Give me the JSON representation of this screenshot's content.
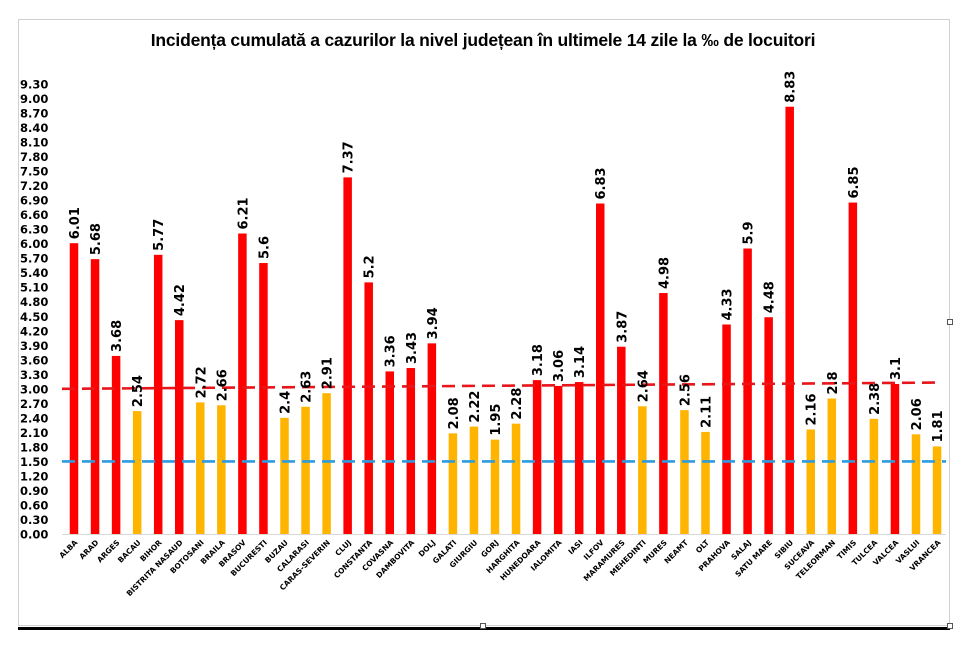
{
  "chart_data": {
    "type": "bar",
    "title": "Incidența cumulată a cazurilor la nivel județean în ultimele 14 zile la ‰ de locuitori",
    "xlabel": "",
    "ylabel": "",
    "ylim": [
      0,
      9.3
    ],
    "yticks": [
      "0.00",
      "0.30",
      "0.60",
      "0.90",
      "1.20",
      "1.50",
      "1.80",
      "2.10",
      "2.40",
      "2.70",
      "3.00",
      "3.30",
      "3.60",
      "3.90",
      "4.20",
      "4.50",
      "4.80",
      "5.10",
      "5.40",
      "5.70",
      "6.00",
      "6.30",
      "6.60",
      "6.90",
      "7.20",
      "7.50",
      "7.80",
      "8.10",
      "8.40",
      "8.70",
      "9.00",
      "9.30"
    ],
    "grid": false,
    "categories": [
      "ALBA",
      "ARAD",
      "ARGES",
      "BACAU",
      "BIHOR",
      "BISTRITA NASAUD",
      "BOTOSANI",
      "BRAILA",
      "BRASOV",
      "BUCURESTI",
      "BUZAU",
      "CALARASI",
      "CARAS-SEVERIN",
      "CLUJ",
      "CONSTANTA",
      "COVASNA",
      "DAMBOVITA",
      "DOLJ",
      "GALATI",
      "GIURGIU",
      "GORJ",
      "HARGHITA",
      "HUNEDOARA",
      "IALOMITA",
      "IASI",
      "ILFOV",
      "MARAMURES",
      "MEHEDINTI",
      "MURES",
      "NEAMT",
      "OLT",
      "PRAHOVA",
      "SALAJ",
      "SATU MARE",
      "SIBIU",
      "SUCEAVA",
      "TELEORMAN",
      "TIMIS",
      "TULCEA",
      "VALCEA",
      "VASLUI",
      "VRANCEA"
    ],
    "values": [
      6.01,
      5.68,
      3.68,
      2.54,
      5.77,
      4.42,
      2.72,
      2.66,
      6.21,
      5.6,
      2.4,
      2.63,
      2.91,
      7.37,
      5.2,
      3.36,
      3.43,
      3.94,
      2.08,
      2.22,
      1.95,
      2.28,
      3.18,
      3.06,
      3.14,
      6.83,
      3.87,
      2.64,
      4.98,
      2.56,
      2.11,
      4.33,
      5.9,
      4.48,
      8.83,
      2.16,
      2.8,
      6.85,
      2.38,
      3.1,
      2.06,
      1.81
    ],
    "data_labels": [
      "6.01",
      "5.68",
      "3.68",
      "2.54",
      "5.77",
      "4.42",
      "2.72",
      "2.66",
      "6.21",
      "5.6",
      "2.4",
      "2.63",
      "2.91",
      "7.37",
      "5.2",
      "3.36",
      "3.43",
      "3.94",
      "2.08",
      "2.22",
      "1.95",
      "2.28",
      "3.18",
      "3.06",
      "3.14",
      "6.83",
      "3.87",
      "2.64",
      "4.98",
      "2.56",
      "2.11",
      "4.33",
      "5.9",
      "4.48",
      "8.83",
      "2.16",
      "2.8",
      "6.85",
      "2.38",
      "3.1",
      "2.06",
      "1.81"
    ],
    "colors": {
      "above_threshold": "#ff0000",
      "below_threshold": "#ffb400",
      "threshold_red_line": "#e8161b",
      "threshold_blue_line": "#2d9be0"
    },
    "threshold_rule": "bars with value >= 3.0 are red, below are amber",
    "reference_lines": [
      {
        "name": "red-threshold",
        "style": "dashed",
        "color": "#e8161b",
        "y_start": 3.0,
        "y_end": 3.13
      },
      {
        "name": "blue-threshold",
        "style": "dashed",
        "color": "#2d9be0",
        "y_start": 1.5,
        "y_end": 1.5
      }
    ],
    "legend": "none"
  }
}
